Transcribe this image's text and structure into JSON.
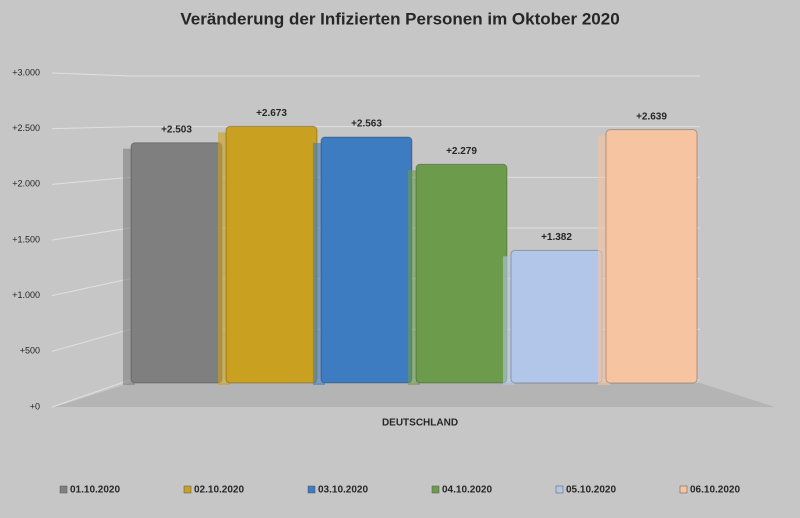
{
  "chart_data": {
    "type": "bar",
    "title": "Veränderung der Infizierten Personen im Oktober 2020",
    "categories": [
      "DEUTSCHLAND"
    ],
    "series": [
      {
        "name": "01.10.2020",
        "color": "#7f7f7f",
        "values": [
          2503
        ],
        "value_labels": [
          "+2.503"
        ]
      },
      {
        "name": "02.10.2020",
        "color": "#c9a020",
        "values": [
          2673
        ],
        "value_labels": [
          "+2.673"
        ]
      },
      {
        "name": "03.10.2020",
        "color": "#3d7cc0",
        "values": [
          2563
        ],
        "value_labels": [
          "+2.563"
        ]
      },
      {
        "name": "04.10.2020",
        "color": "#6c9b4c",
        "values": [
          2279
        ],
        "value_labels": [
          "+2.279"
        ]
      },
      {
        "name": "05.10.2020",
        "color": "#b2c6ea",
        "values": [
          1382
        ],
        "value_labels": [
          "+1.382"
        ]
      },
      {
        "name": "06.10.2020",
        "color": "#f6c4a0",
        "values": [
          2639
        ],
        "value_labels": [
          "+2.639"
        ]
      }
    ],
    "ylim": [
      0,
      3000
    ],
    "yticks": [
      {
        "value": 0,
        "label": "+0"
      },
      {
        "value": 500,
        "label": "+500"
      },
      {
        "value": 1000,
        "label": "+1.000"
      },
      {
        "value": 1500,
        "label": "+1.500"
      },
      {
        "value": 2000,
        "label": "+2.000"
      },
      {
        "value": 2500,
        "label": "+2.500"
      },
      {
        "value": 3000,
        "label": "+3.000"
      }
    ],
    "grid": true,
    "legend": "bottom"
  }
}
